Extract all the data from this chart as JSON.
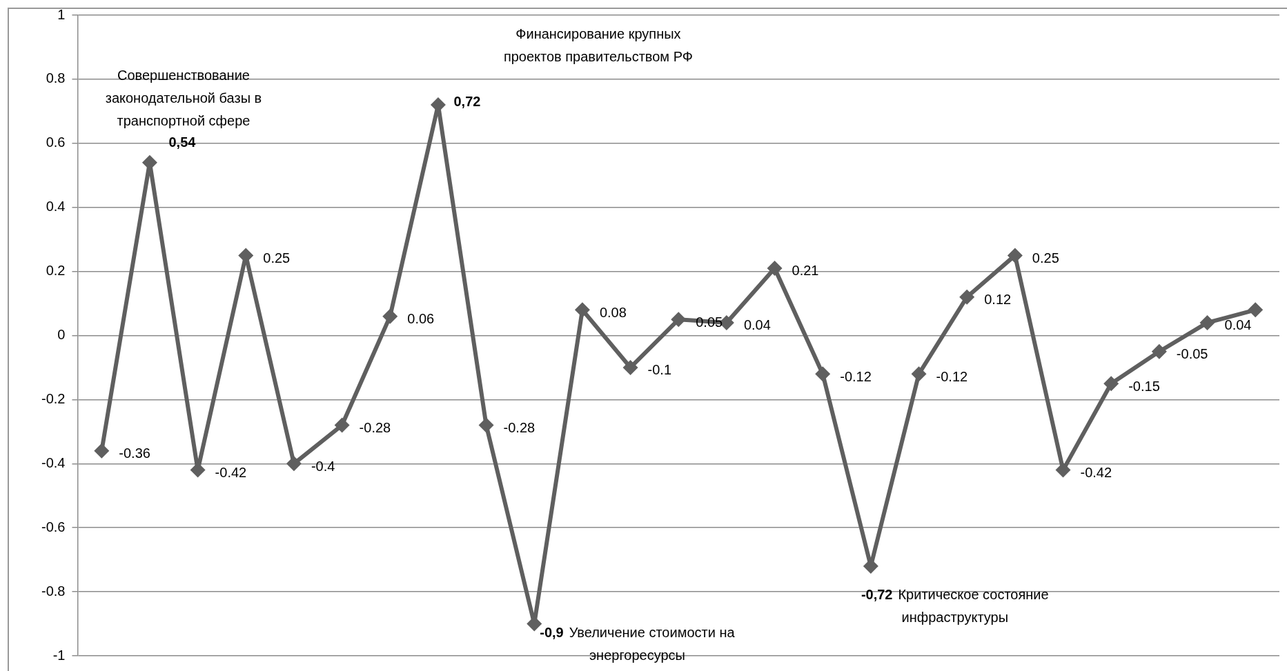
{
  "chart_data": {
    "type": "line",
    "categories": [
      null,
      null,
      null,
      null,
      null,
      null,
      null,
      null,
      null,
      null,
      null,
      null,
      null,
      null,
      null,
      null,
      null,
      null,
      null,
      null,
      null,
      null,
      null,
      null,
      null
    ],
    "values": [
      -0.36,
      0.54,
      -0.42,
      0.25,
      -0.4,
      -0.28,
      0.06,
      0.72,
      -0.28,
      -0.9,
      0.08,
      -0.1,
      0.05,
      0.04,
      0.21,
      -0.12,
      -0.72,
      -0.12,
      0.12,
      0.25,
      -0.42,
      -0.15,
      -0.05,
      0.04,
      0.08
    ],
    "value_labels": [
      "-0.36",
      "0,54",
      "-0.42",
      "0.25",
      "-0.4",
      "-0.28",
      "0.06",
      "0,72",
      "-0.28",
      "-0,9",
      "0.08",
      "-0.1",
      "0.05",
      "0.04",
      "0.21",
      "-0.12",
      "-0,72",
      "-0.12",
      "0.12",
      "0.25",
      "-0.42",
      "-0.15",
      "-0.05",
      "0.04",
      null
    ],
    "color": "#5f5f5f",
    "marker": "diamond",
    "line_style": "solid",
    "ylim": [
      -1,
      1
    ],
    "yticks": [
      -1,
      -0.8,
      -0.6,
      -0.4,
      -0.2,
      0,
      0.2,
      0.4,
      0.6,
      0.8,
      1
    ],
    "grid": "y",
    "tick_labels": "y",
    "annotations": [
      "Совершенствование\nзаконодательной базы в\nтранспортной сфере",
      "Финансирование крупных\nпроектов правительством РФ",
      "Увеличение стоимости на\nэнергоресурсы",
      "Критическое состояние\nинфраструктуры"
    ]
  }
}
